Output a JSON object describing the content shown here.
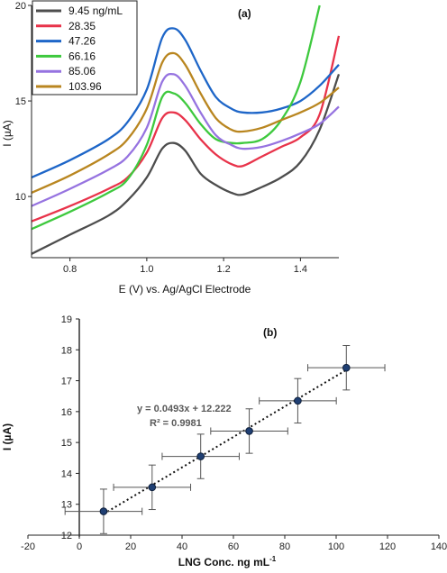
{
  "chart_data": [
    {
      "panel": "(a)",
      "type": "line",
      "xlabel": "E (V) vs. Ag/AgCl Electrode",
      "ylabel": "I (µA)",
      "xlim": [
        0.7,
        1.5
      ],
      "ylim": [
        6.8,
        20
      ],
      "xticks": [
        0.8,
        1.0,
        1.2,
        1.4
      ],
      "yticks": [
        10,
        15,
        20
      ],
      "grid": false,
      "legend_placement": "top-left",
      "series": [
        {
          "name": "9.45 ng/mL",
          "color": "#4d4d4d",
          "x": [
            0.7,
            0.8,
            0.9,
            0.95,
            1.0,
            1.04,
            1.07,
            1.1,
            1.14,
            1.18,
            1.22,
            1.25,
            1.3,
            1.35,
            1.4,
            1.45,
            1.5
          ],
          "y": [
            7.0,
            8.0,
            9.0,
            9.8,
            11.0,
            12.5,
            12.8,
            12.4,
            11.2,
            10.6,
            10.2,
            10.1,
            10.5,
            11.0,
            11.8,
            13.5,
            16.4
          ]
        },
        {
          "name": "28.35",
          "color": "#e8334a",
          "x": [
            0.7,
            0.8,
            0.9,
            0.95,
            1.0,
            1.04,
            1.07,
            1.1,
            1.14,
            1.18,
            1.22,
            1.25,
            1.3,
            1.35,
            1.4,
            1.45,
            1.5
          ],
          "y": [
            8.7,
            9.5,
            10.4,
            11.0,
            12.3,
            14.1,
            14.4,
            14.0,
            13.0,
            12.2,
            11.7,
            11.6,
            12.1,
            12.6,
            13.1,
            14.3,
            18.4
          ]
        },
        {
          "name": "47.26",
          "color": "#1e66c8",
          "x": [
            0.7,
            0.8,
            0.9,
            0.95,
            1.0,
            1.04,
            1.07,
            1.1,
            1.14,
            1.18,
            1.22,
            1.25,
            1.3,
            1.35,
            1.4,
            1.45,
            1.5
          ],
          "y": [
            11.0,
            11.9,
            13.0,
            13.9,
            15.6,
            18.3,
            18.8,
            18.2,
            16.6,
            15.2,
            14.6,
            14.4,
            14.4,
            14.6,
            15.0,
            15.8,
            16.9
          ]
        },
        {
          "name": "66.16",
          "color": "#3ec93e",
          "x": [
            0.7,
            0.8,
            0.9,
            0.95,
            1.0,
            1.04,
            1.07,
            1.1,
            1.14,
            1.18,
            1.22,
            1.25,
            1.3,
            1.35,
            1.4,
            1.45
          ],
          "y": [
            8.3,
            9.2,
            10.2,
            10.9,
            12.7,
            15.2,
            15.4,
            14.9,
            13.8,
            13.0,
            12.8,
            12.8,
            13.0,
            14.0,
            16.0,
            20.0
          ]
        },
        {
          "name": "85.06",
          "color": "#9673e0",
          "x": [
            0.7,
            0.8,
            0.9,
            0.95,
            1.0,
            1.04,
            1.07,
            1.1,
            1.14,
            1.18,
            1.22,
            1.25,
            1.3,
            1.35,
            1.4,
            1.45,
            1.5
          ],
          "y": [
            9.5,
            10.4,
            11.4,
            12.1,
            13.6,
            16.0,
            16.4,
            15.8,
            14.4,
            13.2,
            12.7,
            12.5,
            12.6,
            12.9,
            13.3,
            13.8,
            14.7
          ]
        },
        {
          "name": "103.96",
          "color": "#b98620",
          "x": [
            0.7,
            0.8,
            0.9,
            0.95,
            1.0,
            1.04,
            1.07,
            1.1,
            1.14,
            1.18,
            1.22,
            1.25,
            1.3,
            1.35,
            1.4,
            1.45,
            1.5
          ],
          "y": [
            10.2,
            11.1,
            12.2,
            13.0,
            14.6,
            17.0,
            17.5,
            16.9,
            15.4,
            14.1,
            13.5,
            13.4,
            13.6,
            14.0,
            14.4,
            14.9,
            15.7
          ]
        }
      ]
    },
    {
      "panel": "(b)",
      "type": "scatter",
      "xlabel": "LNG Conc. ng mL",
      "xlabel_sup": "-1",
      "ylabel": "I (µA)",
      "xlim": [
        -20,
        140
      ],
      "ylim": [
        12,
        19
      ],
      "xticks": [
        -20,
        0,
        20,
        40,
        60,
        80,
        100,
        120,
        140
      ],
      "yticks": [
        12,
        13,
        14,
        15,
        16,
        17,
        18,
        19
      ],
      "grid": false,
      "equation": "y = 0.0493x + 12.222",
      "r_squared": "R² = 0.9981",
      "trendline": {
        "slope": 0.0493,
        "intercept": 12.222
      },
      "points": {
        "x": [
          9.45,
          28.35,
          47.26,
          66.16,
          85.06,
          103.96
        ],
        "y": [
          12.77,
          13.55,
          14.55,
          15.37,
          16.35,
          17.42
        ],
        "x_err": [
          15,
          15,
          15,
          15,
          15,
          15
        ],
        "y_err": [
          0.72,
          0.72,
          0.72,
          0.72,
          0.72,
          0.72
        ]
      },
      "marker_color": "#1f3f73"
    }
  ]
}
